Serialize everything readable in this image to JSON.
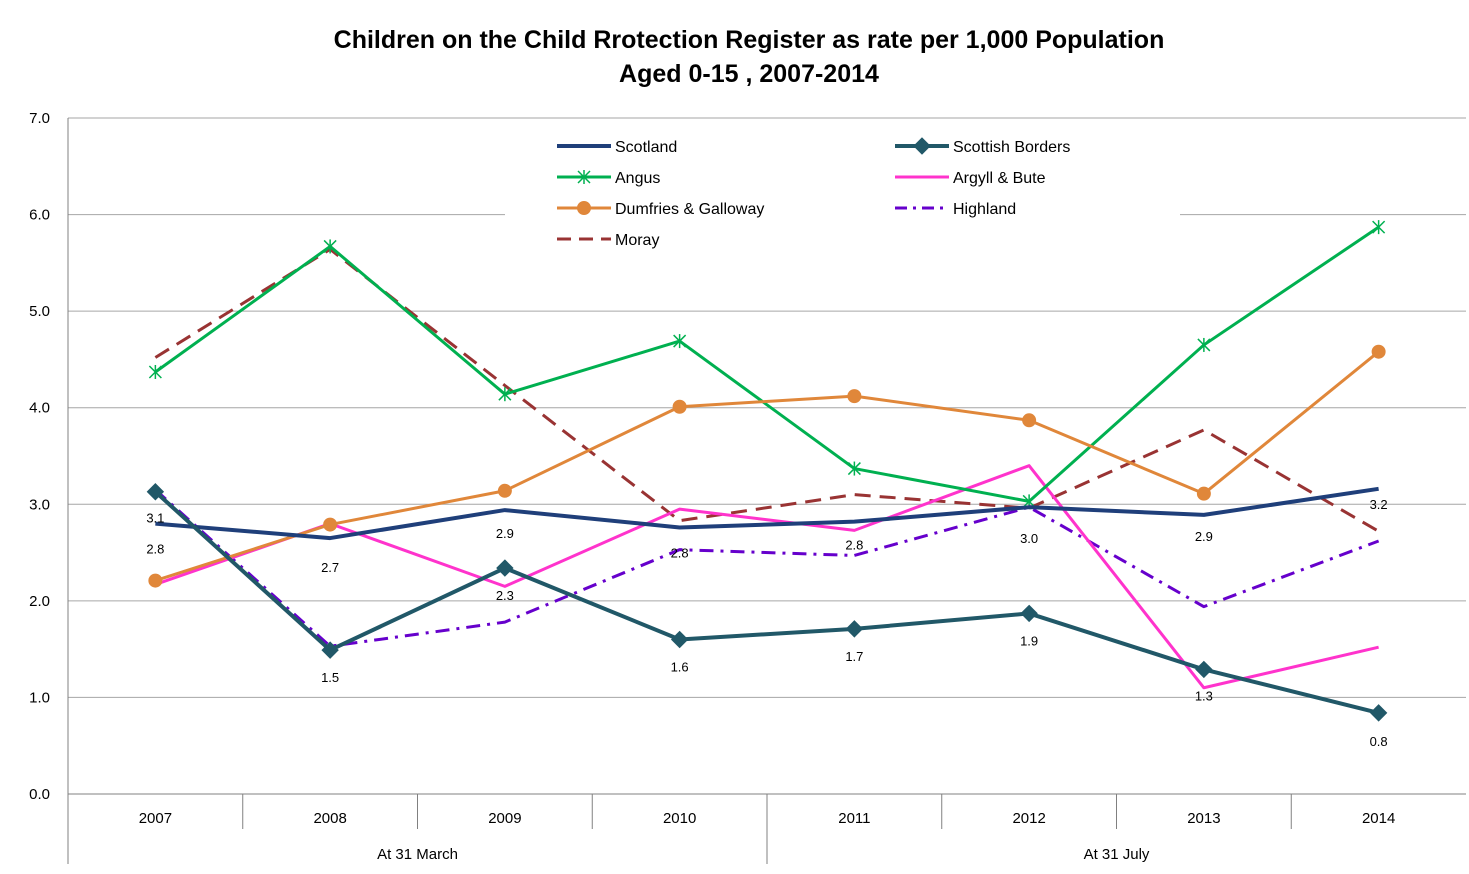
{
  "chart_data": {
    "type": "line",
    "title": "Children on the Child Rrotection Register as rate per 1,000 Population",
    "subtitle": "Aged 0-15 , 2007-2014",
    "xlabel": "",
    "ylabel": "",
    "ylim": [
      0,
      7
    ],
    "yticks": [
      "0.0",
      "1.0",
      "2.0",
      "3.0",
      "4.0",
      "5.0",
      "6.0",
      "7.0"
    ],
    "categories": [
      "2007",
      "2008",
      "2009",
      "2010",
      "2011",
      "2012",
      "2013",
      "2014"
    ],
    "category_groups": [
      {
        "label": "At 31 March",
        "span": 4
      },
      {
        "label": "At 31 July",
        "span": 4
      }
    ],
    "grid": true,
    "legend_position": "top-center",
    "series": [
      {
        "name": "Scotland",
        "color": "#1f3f7a",
        "style": "solid",
        "marker": "none",
        "width": 4,
        "values": [
          2.8,
          2.65,
          2.94,
          2.76,
          2.82,
          2.97,
          2.89,
          3.16
        ],
        "labels": [
          "2.8",
          "2.7",
          "2.9",
          "2.8",
          "2.8",
          "3.0",
          "2.9",
          "3.2"
        ]
      },
      {
        "name": "Scottish Borders",
        "color": "#215868",
        "style": "solid",
        "marker": "diamond",
        "width": 4,
        "values": [
          3.13,
          1.49,
          2.34,
          1.6,
          1.71,
          1.87,
          1.29,
          0.84
        ],
        "labels": [
          "3.1",
          "1.5",
          "2.3",
          "1.6",
          "1.7",
          "1.9",
          "1.3",
          "0.8"
        ]
      },
      {
        "name": "Angus",
        "color": "#00b050",
        "style": "solid",
        "marker": "star",
        "width": 3,
        "values": [
          4.37,
          5.67,
          4.14,
          4.69,
          3.37,
          3.03,
          4.65,
          5.87
        ]
      },
      {
        "name": "Argyll & Bute",
        "color": "#ff33cc",
        "style": "solid",
        "marker": "none",
        "width": 3,
        "values": [
          2.17,
          2.8,
          2.15,
          2.95,
          2.73,
          3.4,
          1.1,
          1.52
        ]
      },
      {
        "name": "Dumfries & Galloway",
        "color": "#e0873a",
        "style": "solid",
        "marker": "circle",
        "width": 3,
        "values": [
          2.21,
          2.79,
          3.14,
          4.01,
          4.12,
          3.87,
          3.11,
          4.58
        ]
      },
      {
        "name": "Highland",
        "color": "#6600cc",
        "style": "dashdot",
        "marker": "none",
        "width": 3,
        "values": [
          3.15,
          1.53,
          1.78,
          2.53,
          2.47,
          2.97,
          1.94,
          2.62
        ]
      },
      {
        "name": "Moray",
        "color": "#993333",
        "style": "dash",
        "marker": "none",
        "width": 3,
        "values": [
          4.52,
          5.64,
          4.23,
          2.83,
          3.1,
          2.96,
          3.77,
          2.72
        ]
      }
    ]
  }
}
